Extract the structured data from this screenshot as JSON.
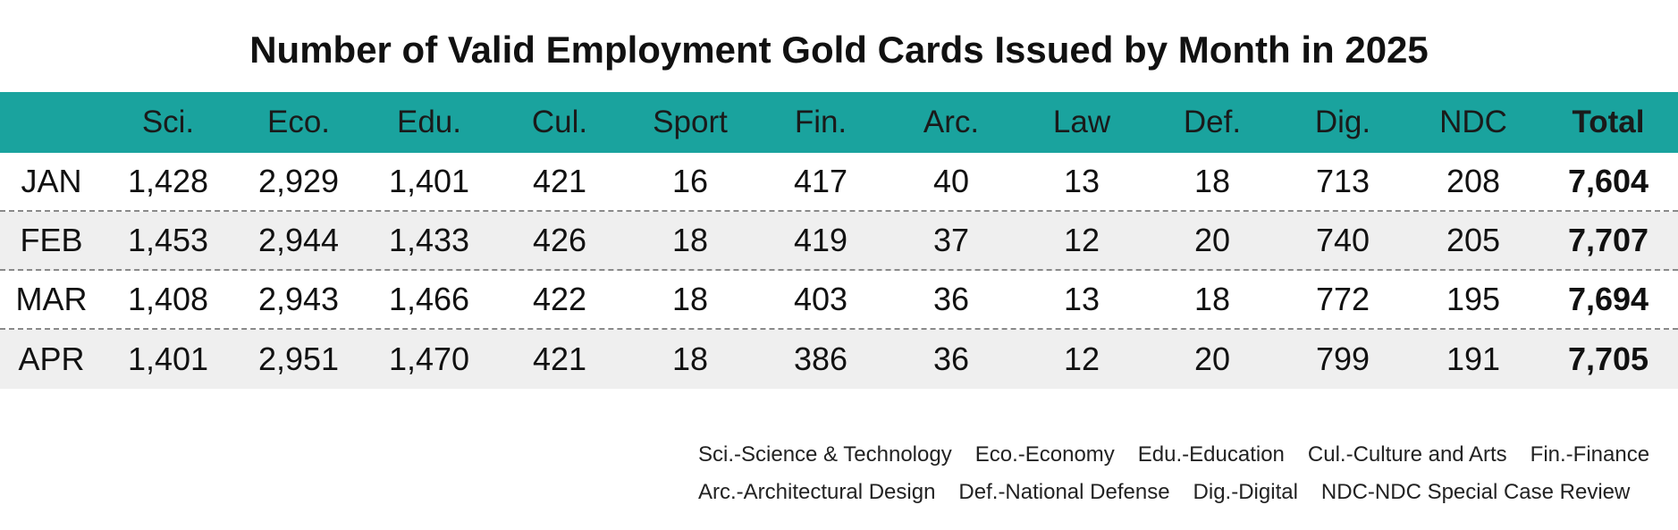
{
  "chart_data": {
    "type": "table",
    "title": "Number of Valid Employment Gold Cards Issued by Month in 2025",
    "columns": [
      "",
      "Sci.",
      "Eco.",
      "Edu.",
      "Cul.",
      "Sport",
      "Fin.",
      "Arc.",
      "Law",
      "Def.",
      "Dig.",
      "NDC",
      "Total"
    ],
    "rows": [
      {
        "month": "JAN",
        "values": [
          "1,428",
          "2,929",
          "1,401",
          "421",
          "16",
          "417",
          "40",
          "13",
          "18",
          "713",
          "208"
        ],
        "total": "7,604"
      },
      {
        "month": "FEB",
        "values": [
          "1,453",
          "2,944",
          "1,433",
          "426",
          "18",
          "419",
          "37",
          "12",
          "20",
          "740",
          "205"
        ],
        "total": "7,707"
      },
      {
        "month": "MAR",
        "values": [
          "1,408",
          "2,943",
          "1,466",
          "422",
          "18",
          "403",
          "36",
          "13",
          "18",
          "772",
          "195"
        ],
        "total": "7,694"
      },
      {
        "month": "APR",
        "values": [
          "1,401",
          "2,951",
          "1,470",
          "421",
          "18",
          "386",
          "36",
          "12",
          "20",
          "799",
          "191"
        ],
        "total": "7,705"
      }
    ],
    "legend": [
      [
        "Sci.-Science & Technology",
        "Eco.-Economy",
        "Edu.-Education",
        "Cul.-Culture and Arts",
        "Fin.-Finance"
      ],
      [
        "Arc.-Architectural Design",
        "Def.-National Defense",
        "Dig.-Digital",
        "NDC-NDC Special Case Review"
      ]
    ]
  },
  "colors": {
    "header_bg": "#1aa39e",
    "shaded_row": "#efefef",
    "separator": "#8a8a8a"
  }
}
